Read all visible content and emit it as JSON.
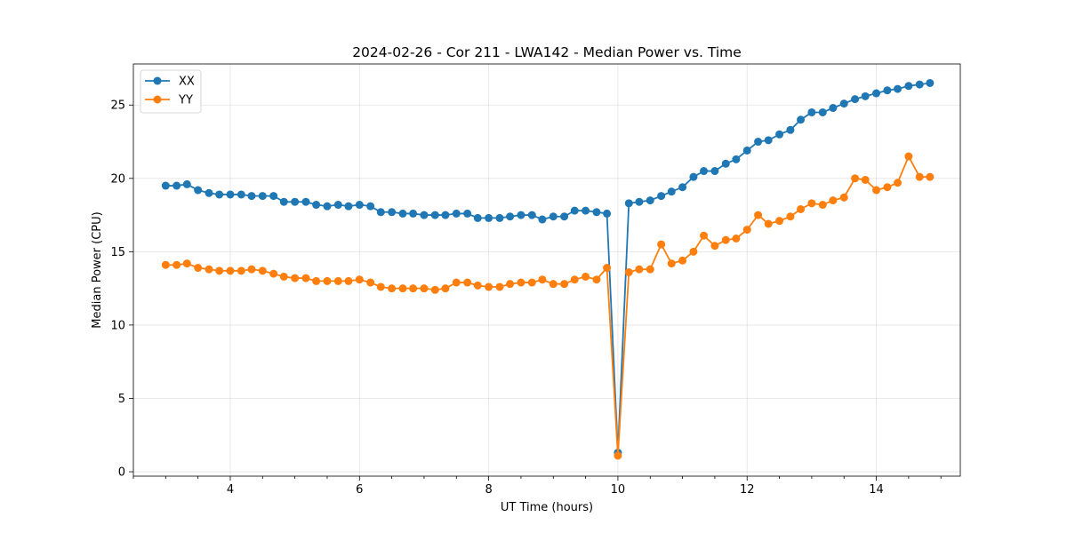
{
  "chart_data": {
    "type": "line",
    "title": "2024-02-26 - Cor 211 - LWA142 - Median Power vs. Time",
    "xlabel": "UT Time (hours)",
    "ylabel": "Median Power (CPU)",
    "xlim": [
      2.5,
      15.3
    ],
    "ylim": [
      -0.3,
      27.8
    ],
    "xticks": [
      4,
      6,
      8,
      10,
      12,
      14
    ],
    "xtick_labels": [
      "4",
      "6",
      "8",
      "10",
      "12",
      "14"
    ],
    "x_minor_ticks": [
      2.5,
      3.0,
      3.5,
      4.5,
      5.0,
      5.5,
      6.5,
      7.0,
      7.5,
      8.5,
      9.0,
      9.5,
      10.5,
      11.0,
      11.5,
      12.5,
      13.0,
      13.5,
      14.5,
      15.0
    ],
    "yticks": [
      0,
      5,
      10,
      15,
      20,
      25
    ],
    "ytick_labels": [
      "0",
      "5",
      "10",
      "15",
      "20",
      "25"
    ],
    "grid": true,
    "legend_position": "upper-left",
    "x": [
      3.0,
      3.17,
      3.33,
      3.5,
      3.67,
      3.83,
      4.0,
      4.17,
      4.33,
      4.5,
      4.67,
      4.83,
      5.0,
      5.17,
      5.33,
      5.5,
      5.67,
      5.83,
      6.0,
      6.17,
      6.33,
      6.5,
      6.67,
      6.83,
      7.0,
      7.17,
      7.33,
      7.5,
      7.67,
      7.83,
      8.0,
      8.17,
      8.33,
      8.5,
      8.67,
      8.83,
      9.0,
      9.17,
      9.33,
      9.5,
      9.67,
      9.83,
      10.0,
      10.17,
      10.33,
      10.5,
      10.67,
      10.83,
      11.0,
      11.17,
      11.33,
      11.5,
      11.67,
      11.83,
      12.0,
      12.17,
      12.33,
      12.5,
      12.67,
      12.83,
      13.0,
      13.17,
      13.33,
      13.5,
      13.67,
      13.83,
      14.0,
      14.17,
      14.33,
      14.5,
      14.67,
      14.83
    ],
    "series": [
      {
        "name": "XX",
        "color": "#1f77b4",
        "values": [
          19.5,
          19.5,
          19.6,
          19.2,
          19.0,
          18.9,
          18.9,
          18.9,
          18.8,
          18.8,
          18.8,
          18.4,
          18.4,
          18.4,
          18.2,
          18.1,
          18.2,
          18.1,
          18.2,
          18.1,
          17.7,
          17.7,
          17.6,
          17.6,
          17.5,
          17.5,
          17.5,
          17.6,
          17.6,
          17.3,
          17.3,
          17.3,
          17.4,
          17.5,
          17.5,
          17.2,
          17.4,
          17.4,
          17.8,
          17.8,
          17.7,
          17.6,
          1.3,
          18.3,
          18.4,
          18.5,
          18.8,
          19.1,
          19.4,
          20.1,
          20.5,
          20.5,
          21.0,
          21.3,
          21.9,
          22.5,
          22.6,
          23.0,
          23.3,
          24.0,
          24.5,
          24.5,
          24.8,
          25.1,
          25.4,
          25.6,
          25.8,
          26.0,
          26.1,
          26.3,
          26.4,
          26.5
        ]
      },
      {
        "name": "YY",
        "color": "#ff7f0e",
        "values": [
          14.1,
          14.1,
          14.2,
          13.9,
          13.8,
          13.7,
          13.7,
          13.7,
          13.8,
          13.7,
          13.5,
          13.3,
          13.2,
          13.2,
          13.0,
          13.0,
          13.0,
          13.0,
          13.1,
          12.9,
          12.6,
          12.5,
          12.5,
          12.5,
          12.5,
          12.4,
          12.5,
          12.9,
          12.9,
          12.7,
          12.6,
          12.6,
          12.8,
          12.9,
          12.9,
          13.1,
          12.8,
          12.8,
          13.1,
          13.3,
          13.1,
          13.9,
          1.1,
          13.6,
          13.8,
          13.8,
          15.5,
          14.2,
          14.4,
          15.0,
          16.1,
          15.4,
          15.8,
          15.9,
          16.5,
          17.5,
          16.9,
          17.1,
          17.4,
          17.9,
          18.3,
          18.2,
          18.5,
          18.7,
          20.0,
          19.9,
          19.2,
          19.4,
          19.7,
          21.5,
          20.1,
          20.1
        ]
      }
    ]
  }
}
